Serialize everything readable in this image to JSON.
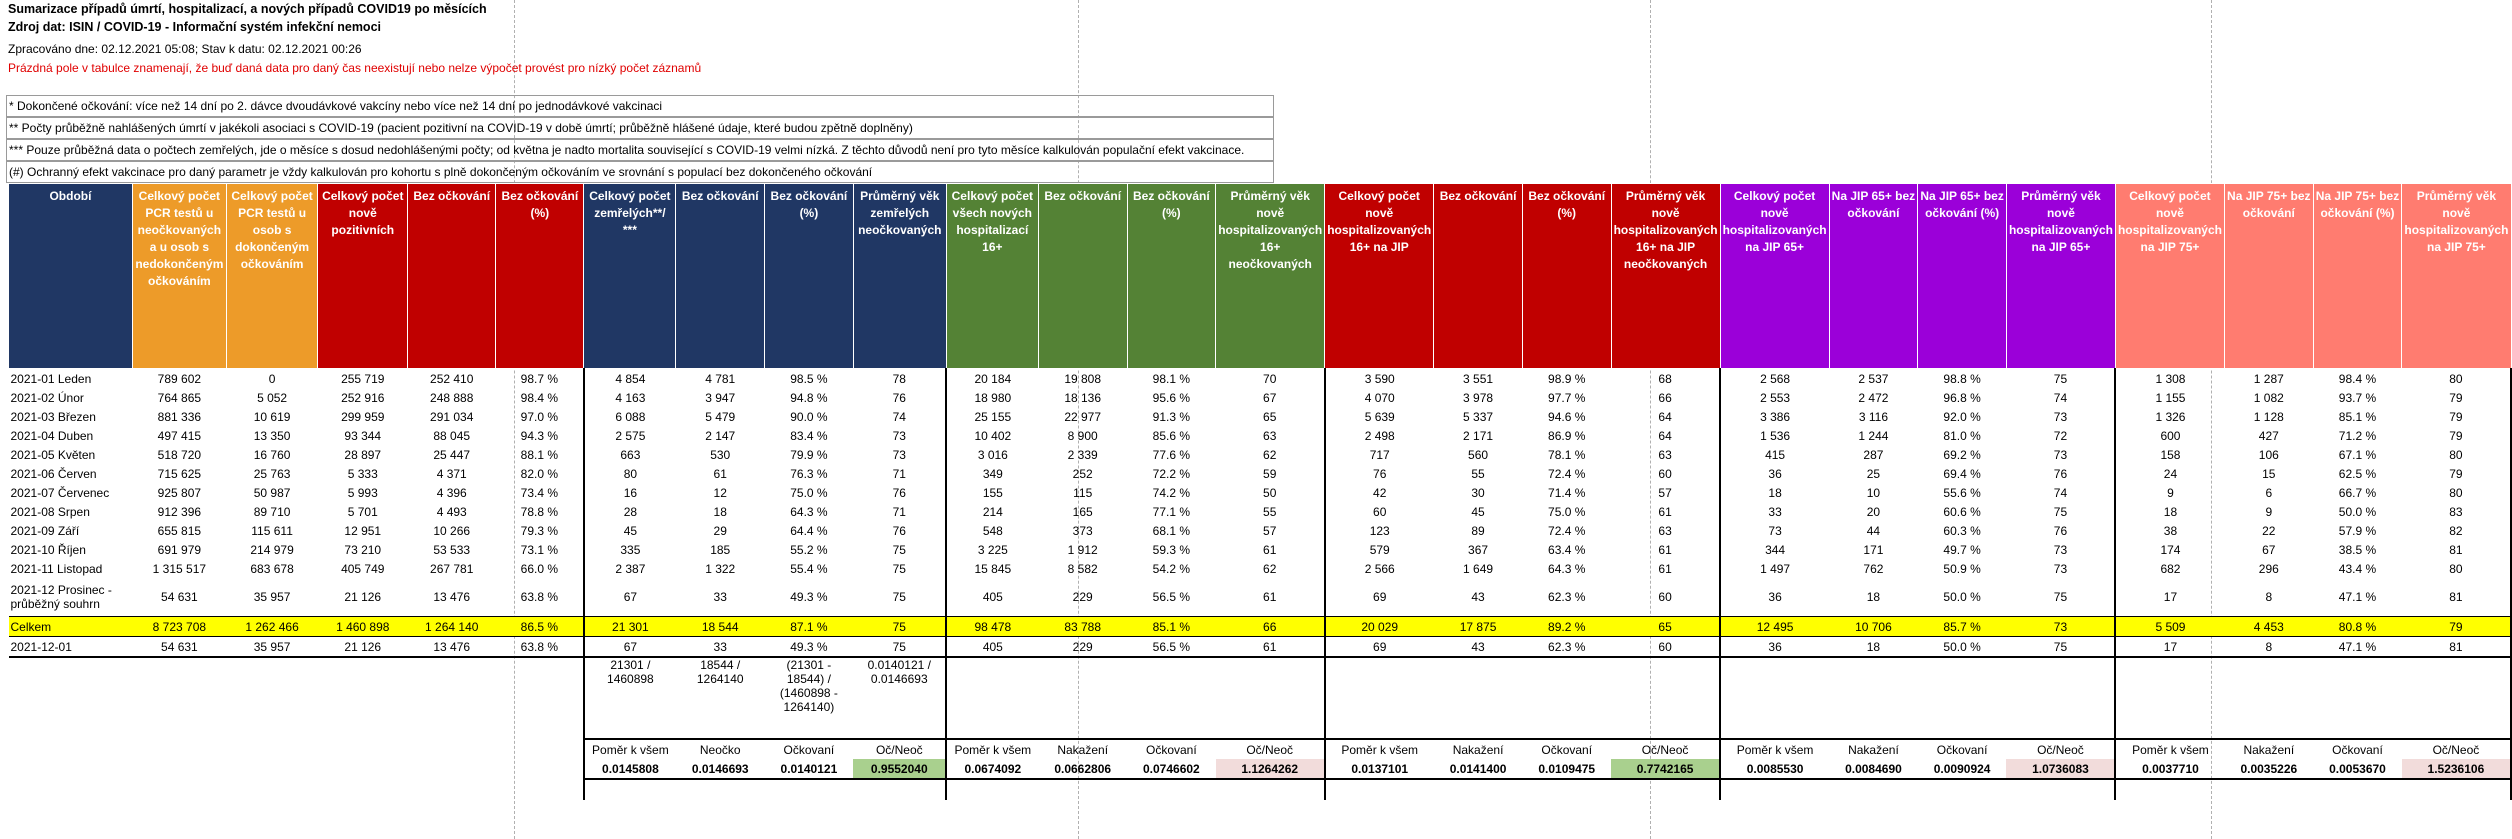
{
  "header": {
    "title": "Sumarizace případů úmrtí, hospitalizací, a nových případů COVID19 po měsících",
    "source": "Zdroj dat: ISIN / COVID-19 - Informační systém infekční nemoci",
    "processed": "Zpracováno dne: 02.12.2021 05:08; Stav k datu: 02.12.2021 00:26",
    "note_red": "Prázdná pole v tabulce znamenají, že buď daná data pro daný čas neexistují nebo nelze výpočet provést pro nízký počet záznamů"
  },
  "notes": [
    "* Dokončené očkování: více než 14 dní po 2. dávce dvoudávkové vakcíny nebo více než 14 dní po jednodávkové vakcinaci",
    "** Počty průběžně nahlášených úmrtí v jakékoli asociaci s COVID-19 (pacient pozitivní na COVID-19 v době úmrtí; průběžně hlášené údaje, které budou zpětně doplněny)",
    "*** Pouze průběžná data o počtech zemřelých, jde o měsíce s dosud nedohlášenými počty; od května je nadto mortalita související s COVID-19 velmi nízká. Z těchto důvodů není pro tyto měsíce kalkulován populační efekt vakcinace.",
    "(#) Ochranný efekt vakcinace pro daný parametr je vždy kalkulován pro kohortu s plně dokončeným očkováním ve srovnání s populací bez dokončeného očkování"
  ],
  "table": {
    "columns": [
      "Období",
      "Celkový počet PCR testů u neočkovaných a u osob s nedokončeným očkováním",
      "Celkový počet PCR testů u osob s dokončeným očkováním",
      "Celkový počet nově pozitivních",
      "Bez očkování",
      "Bez očkování (%)",
      "Celkový počet zemřelých**/ ***",
      "Bez očkování",
      "Bez očkování (%)",
      "Průměrný věk zemřelých neočkovaných",
      "Celkový počet všech nových hospitalizací 16+",
      "Bez očkování",
      "Bez očkování (%)",
      "Průměrný věk nově hospitalizovaných 16+ neočkovaných",
      "Celkový počet nově hospitalizovaných 16+ na JIP",
      "Bez očkování",
      "Bez očkování (%)",
      "Průměrný věk nově hospitalizovaných 16+ na JIP neočkovaných",
      "Celkový počet nově hospitalizovaných na JIP 65+",
      "Na JIP 65+ bez očkování",
      "Na JIP 65+ bez očkování (%)",
      "Průměrný věk nově hospitalizovaných na JIP 65+",
      "Celkový počet nově hospitalizovaných na JIP 75+",
      "Na JIP 75+ bez očkování",
      "Na JIP 75+ bez očkování (%)",
      "Průměrný věk nově hospitalizovaných na JIP 75+"
    ],
    "rows": [
      [
        "2021-01 Leden",
        "789 602",
        "0",
        "255 719",
        "252 410",
        "98.7 %",
        "4 854",
        "4 781",
        "98.5 %",
        "78",
        "20 184",
        "19 808",
        "98.1 %",
        "70",
        "3 590",
        "3 551",
        "98.9 %",
        "68",
        "2 568",
        "2 537",
        "98.8 %",
        "75",
        "1 308",
        "1 287",
        "98.4 %",
        "80"
      ],
      [
        "2021-02 Únor",
        "764 865",
        "5 052",
        "252 916",
        "248 888",
        "98.4 %",
        "4 163",
        "3 947",
        "94.8 %",
        "76",
        "18 980",
        "18 136",
        "95.6 %",
        "67",
        "4 070",
        "3 978",
        "97.7 %",
        "66",
        "2 553",
        "2 472",
        "96.8 %",
        "74",
        "1 155",
        "1 082",
        "93.7 %",
        "79"
      ],
      [
        "2021-03 Březen",
        "881 336",
        "10 619",
        "299 959",
        "291 034",
        "97.0 %",
        "6 088",
        "5 479",
        "90.0 %",
        "74",
        "25 155",
        "22 977",
        "91.3 %",
        "65",
        "5 639",
        "5 337",
        "94.6 %",
        "64",
        "3 386",
        "3 116",
        "92.0 %",
        "73",
        "1 326",
        "1 128",
        "85.1 %",
        "79"
      ],
      [
        "2021-04 Duben",
        "497 415",
        "13 350",
        "93 344",
        "88 045",
        "94.3 %",
        "2 575",
        "2 147",
        "83.4 %",
        "73",
        "10 402",
        "8 900",
        "85.6 %",
        "63",
        "2 498",
        "2 171",
        "86.9 %",
        "64",
        "1 536",
        "1 244",
        "81.0 %",
        "72",
        "600",
        "427",
        "71.2 %",
        "79"
      ],
      [
        "2021-05 Květen",
        "518 720",
        "16 760",
        "28 897",
        "25 447",
        "88.1 %",
        "663",
        "530",
        "79.9 %",
        "73",
        "3 016",
        "2 339",
        "77.6 %",
        "62",
        "717",
        "560",
        "78.1 %",
        "63",
        "415",
        "287",
        "69.2 %",
        "73",
        "158",
        "106",
        "67.1 %",
        "80"
      ],
      [
        "2021-06 Červen",
        "715 625",
        "25 763",
        "5 333",
        "4 371",
        "82.0 %",
        "80",
        "61",
        "76.3 %",
        "71",
        "349",
        "252",
        "72.2 %",
        "59",
        "76",
        "55",
        "72.4 %",
        "60",
        "36",
        "25",
        "69.4 %",
        "76",
        "24",
        "15",
        "62.5 %",
        "79"
      ],
      [
        "2021-07 Červenec",
        "925 807",
        "50 987",
        "5 993",
        "4 396",
        "73.4 %",
        "16",
        "12",
        "75.0 %",
        "76",
        "155",
        "115",
        "74.2 %",
        "50",
        "42",
        "30",
        "71.4 %",
        "57",
        "18",
        "10",
        "55.6 %",
        "74",
        "9",
        "6",
        "66.7 %",
        "80"
      ],
      [
        "2021-08 Srpen",
        "912 396",
        "89 710",
        "5 701",
        "4 493",
        "78.8 %",
        "28",
        "18",
        "64.3 %",
        "71",
        "214",
        "165",
        "77.1 %",
        "55",
        "60",
        "45",
        "75.0 %",
        "61",
        "33",
        "20",
        "60.6 %",
        "75",
        "18",
        "9",
        "50.0 %",
        "83"
      ],
      [
        "2021-09 Září",
        "655 815",
        "115 611",
        "12 951",
        "10 266",
        "79.3 %",
        "45",
        "29",
        "64.4 %",
        "76",
        "548",
        "373",
        "68.1 %",
        "57",
        "123",
        "89",
        "72.4 %",
        "63",
        "73",
        "44",
        "60.3 %",
        "76",
        "38",
        "22",
        "57.9 %",
        "82"
      ],
      [
        "2021-10 Říjen",
        "691 979",
        "214 979",
        "73 210",
        "53 533",
        "73.1 %",
        "335",
        "185",
        "55.2 %",
        "75",
        "3 225",
        "1 912",
        "59.3 %",
        "61",
        "579",
        "367",
        "63.4 %",
        "61",
        "344",
        "171",
        "49.7 %",
        "73",
        "174",
        "67",
        "38.5 %",
        "81"
      ],
      [
        "2021-11 Listopad",
        "1 315 517",
        "683 678",
        "405 749",
        "267 781",
        "66.0 %",
        "2 387",
        "1 322",
        "55.4 %",
        "75",
        "15 845",
        "8 582",
        "54.2 %",
        "62",
        "2 566",
        "1 649",
        "64.3 %",
        "61",
        "1 497",
        "762",
        "50.9 %",
        "73",
        "682",
        "296",
        "43.4 %",
        "80"
      ],
      [
        "2021-12 Prosinec - průběžný souhrn",
        "54 631",
        "35 957",
        "21 126",
        "13 476",
        "63.8 %",
        "67",
        "33",
        "49.3 %",
        "75",
        "405",
        "229",
        "56.5 %",
        "61",
        "69",
        "43",
        "62.3 %",
        "60",
        "36",
        "18",
        "50.0 %",
        "75",
        "17",
        "8",
        "47.1 %",
        "81"
      ]
    ],
    "total": [
      "Celkem",
      "8 723 708",
      "1 262 466",
      "1 460 898",
      "1 264 140",
      "86.5 %",
      "21 301",
      "18 544",
      "87.1 %",
      "75",
      "98 478",
      "83 788",
      "85.1 %",
      "66",
      "20 029",
      "17 875",
      "89.2 %",
      "65",
      "12 495",
      "10 706",
      "85.7 %",
      "73",
      "5 509",
      "4 453",
      "80.8 %",
      "79"
    ],
    "last": [
      "2021-12-01",
      "54 631",
      "35 957",
      "21 126",
      "13 476",
      "63.8 %",
      "67",
      "33",
      "49.3 %",
      "75",
      "405",
      "229",
      "56.5 %",
      "61",
      "69",
      "43",
      "62.3 %",
      "60",
      "36",
      "18",
      "50.0 %",
      "75",
      "17",
      "8",
      "47.1 %",
      "81"
    ]
  },
  "formulas": [
    "21301 /\n1460898",
    "18544 /\n1264140",
    "(21301 -\n18544) /\n(1460898 -\n1264140)",
    "0.0140121 /\n0.0146693"
  ],
  "ratio_groups": [
    {
      "labels": [
        "Poměr k všem",
        "Neočko",
        "Očkovaní",
        "Oč/Neoč"
      ],
      "values": [
        "0.0145808",
        "0.0146693",
        "0.0140121",
        "0.9552040"
      ]
    },
    {
      "labels": [
        "Poměr k všem",
        "Nakažení",
        "Očkovaní",
        "Oč/Neoč"
      ],
      "values": [
        "0.0674092",
        "0.0662806",
        "0.0746602",
        "1.1264262"
      ]
    },
    {
      "labels": [
        "Poměr k všem",
        "Nakažení",
        "Očkovaní",
        "Oč/Neoč"
      ],
      "values": [
        "0.0137101",
        "0.0141400",
        "0.0109475",
        "0.7742165"
      ]
    },
    {
      "labels": [
        "Poměr k všem",
        "Nakažení",
        "Očkovaní",
        "Oč/Neoč"
      ],
      "values": [
        "0.0085530",
        "0.0084690",
        "0.0090924",
        "1.0736083"
      ]
    },
    {
      "labels": [
        "Poměr k všem",
        "Nakažení",
        "Očkovaní",
        "Oč/Neoč"
      ],
      "values": [
        "0.0037710",
        "0.0035226",
        "0.0053670",
        "1.5236106"
      ]
    }
  ]
}
